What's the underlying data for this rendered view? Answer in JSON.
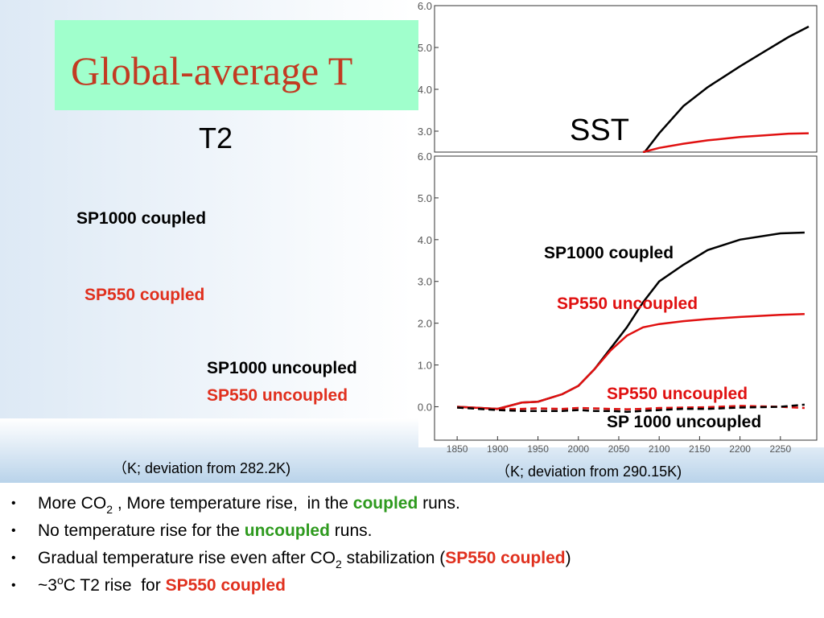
{
  "title": "Global-average T",
  "left_panel": {
    "heading": "T2",
    "labels": [
      {
        "text": "SP1000 coupled",
        "color": "#000000"
      },
      {
        "text": "SP550 coupled",
        "color": "#e0301e"
      },
      {
        "text": "SP1000 uncoupled",
        "color": "#000000"
      },
      {
        "text": "SP550 uncoupled",
        "color": "#e0301e"
      }
    ],
    "unit": "（K; deviation from 282.2K)"
  },
  "chart_data": [
    {
      "type": "line",
      "label": "SST",
      "xlim": [
        1822,
        2295
      ],
      "ylim": [
        2.5,
        6.0
      ],
      "yticks": [
        {
          "value": 3,
          "label": "3.0"
        },
        {
          "value": 4,
          "label": "4.0"
        },
        {
          "value": 5,
          "label": "5.0"
        },
        {
          "value": 6,
          "label": "6.0"
        }
      ],
      "x": [
        2080,
        2100,
        2130,
        2160,
        2180,
        2200,
        2230,
        2260,
        2285
      ],
      "series": [
        {
          "color": "#000000",
          "values": [
            2.45,
            2.95,
            3.6,
            4.05,
            4.3,
            4.55,
            4.9,
            5.25,
            5.5
          ]
        },
        {
          "color": "#e01010",
          "values": [
            2.5,
            2.6,
            2.7,
            2.78,
            2.82,
            2.86,
            2.9,
            2.94,
            2.95
          ]
        }
      ]
    },
    {
      "type": "line",
      "xlim": [
        1822,
        2295
      ],
      "ylim": [
        -0.8,
        6.0
      ],
      "xticks": [
        1850,
        1900,
        1950,
        2000,
        2050,
        2100,
        2150,
        2200,
        2250
      ],
      "yticks": [
        {
          "value": 0,
          "label": "0.0"
        },
        {
          "value": 1,
          "label": "1.0"
        },
        {
          "value": 2,
          "label": "2.0"
        },
        {
          "value": 3,
          "label": "3.0"
        },
        {
          "value": 4,
          "label": "4.0"
        },
        {
          "value": 5,
          "label": "5.0"
        },
        {
          "value": 6,
          "label": "6.0"
        }
      ],
      "x": [
        1850,
        1900,
        1930,
        1950,
        1980,
        2000,
        2020,
        2040,
        2060,
        2080,
        2100,
        2130,
        2160,
        2200,
        2250,
        2280
      ],
      "series": [
        {
          "name": "SP1000 coupled",
          "color": "#000000",
          "dashed": false,
          "values": [
            0,
            -0.05,
            0.1,
            0.12,
            0.3,
            0.5,
            0.9,
            1.4,
            1.9,
            2.5,
            3.0,
            3.4,
            3.75,
            4.0,
            4.15,
            4.17
          ]
        },
        {
          "name": "SP550 uncoupled",
          "color": "#e01010",
          "dashed": false,
          "values": [
            0,
            -0.05,
            0.1,
            0.12,
            0.3,
            0.5,
            0.9,
            1.35,
            1.7,
            1.9,
            1.98,
            2.05,
            2.1,
            2.15,
            2.2,
            2.22
          ]
        },
        {
          "name": "SP550 uncoupled",
          "color": "#e01010",
          "dashed": true,
          "values": [
            -0.02,
            -0.06,
            -0.05,
            -0.04,
            -0.05,
            -0.03,
            -0.04,
            -0.05,
            -0.06,
            -0.05,
            -0.03,
            -0.02,
            -0.01,
            0.02,
            0,
            -0.03
          ]
        },
        {
          "name": "SP 1000 uncoupled",
          "color": "#000000",
          "dashed": true,
          "values": [
            -0.02,
            -0.08,
            -0.1,
            -0.1,
            -0.1,
            -0.08,
            -0.1,
            -0.1,
            -0.12,
            -0.1,
            -0.08,
            -0.05,
            -0.05,
            -0.02,
            0,
            0.05
          ]
        }
      ],
      "unit": "（K; deviation from 290.15K)"
    }
  ],
  "bullets": [
    [
      {
        "text": "More CO"
      },
      {
        "text": "2",
        "sub": true
      },
      {
        "text": " , More temperature rise,  in the "
      },
      {
        "text": "coupled",
        "bold": true,
        "color": "#2e9a1e"
      },
      {
        "text": " runs."
      }
    ],
    [
      {
        "text": "No temperature rise for the "
      },
      {
        "text": "uncoupled",
        "bold": true,
        "color": "#2e9a1e"
      },
      {
        "text": " runs."
      }
    ],
    [
      {
        "text": "Gradual temperature rise even after CO"
      },
      {
        "text": "2",
        "sub": true
      },
      {
        "text": " stabilization ("
      },
      {
        "text": "SP550 coupled",
        "bold": true,
        "color": "#e0301e"
      },
      {
        "text": ")"
      }
    ],
    [
      {
        "text": "~3"
      },
      {
        "text": "o",
        "sup": true
      },
      {
        "text": "C T2 rise  for "
      },
      {
        "text": "SP550 coupled",
        "bold": true,
        "color": "#e0301e"
      }
    ]
  ]
}
